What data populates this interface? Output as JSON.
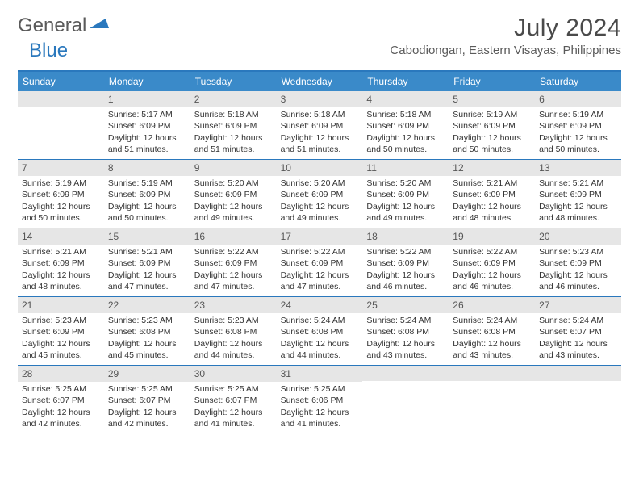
{
  "brand": {
    "part1": "General",
    "part2": "Blue"
  },
  "title": "July 2024",
  "location": "Cabodiongan, Eastern Visayas, Philippines",
  "colors": {
    "header_bar": "#3a8ac9",
    "rule": "#2a78bd",
    "daynum_bg": "#e6e6e6",
    "text": "#333333",
    "title_text": "#4a4a4a",
    "brand_gray": "#5a5a5a",
    "brand_blue": "#2a78bd",
    "background": "#ffffff"
  },
  "typography": {
    "month_title_pt": 30,
    "location_pt": 15,
    "day_header_pt": 12,
    "cell_body_pt": 10.5,
    "daynum_pt": 12
  },
  "day_names": [
    "Sunday",
    "Monday",
    "Tuesday",
    "Wednesday",
    "Thursday",
    "Friday",
    "Saturday"
  ],
  "weeks": [
    [
      {
        "n": "",
        "empty": true
      },
      {
        "n": "1",
        "sunrise": "Sunrise: 5:17 AM",
        "sunset": "Sunset: 6:09 PM",
        "d1": "Daylight: 12 hours",
        "d2": "and 51 minutes."
      },
      {
        "n": "2",
        "sunrise": "Sunrise: 5:18 AM",
        "sunset": "Sunset: 6:09 PM",
        "d1": "Daylight: 12 hours",
        "d2": "and 51 minutes."
      },
      {
        "n": "3",
        "sunrise": "Sunrise: 5:18 AM",
        "sunset": "Sunset: 6:09 PM",
        "d1": "Daylight: 12 hours",
        "d2": "and 51 minutes."
      },
      {
        "n": "4",
        "sunrise": "Sunrise: 5:18 AM",
        "sunset": "Sunset: 6:09 PM",
        "d1": "Daylight: 12 hours",
        "d2": "and 50 minutes."
      },
      {
        "n": "5",
        "sunrise": "Sunrise: 5:19 AM",
        "sunset": "Sunset: 6:09 PM",
        "d1": "Daylight: 12 hours",
        "d2": "and 50 minutes."
      },
      {
        "n": "6",
        "sunrise": "Sunrise: 5:19 AM",
        "sunset": "Sunset: 6:09 PM",
        "d1": "Daylight: 12 hours",
        "d2": "and 50 minutes."
      }
    ],
    [
      {
        "n": "7",
        "sunrise": "Sunrise: 5:19 AM",
        "sunset": "Sunset: 6:09 PM",
        "d1": "Daylight: 12 hours",
        "d2": "and 50 minutes."
      },
      {
        "n": "8",
        "sunrise": "Sunrise: 5:19 AM",
        "sunset": "Sunset: 6:09 PM",
        "d1": "Daylight: 12 hours",
        "d2": "and 50 minutes."
      },
      {
        "n": "9",
        "sunrise": "Sunrise: 5:20 AM",
        "sunset": "Sunset: 6:09 PM",
        "d1": "Daylight: 12 hours",
        "d2": "and 49 minutes."
      },
      {
        "n": "10",
        "sunrise": "Sunrise: 5:20 AM",
        "sunset": "Sunset: 6:09 PM",
        "d1": "Daylight: 12 hours",
        "d2": "and 49 minutes."
      },
      {
        "n": "11",
        "sunrise": "Sunrise: 5:20 AM",
        "sunset": "Sunset: 6:09 PM",
        "d1": "Daylight: 12 hours",
        "d2": "and 49 minutes."
      },
      {
        "n": "12",
        "sunrise": "Sunrise: 5:21 AM",
        "sunset": "Sunset: 6:09 PM",
        "d1": "Daylight: 12 hours",
        "d2": "and 48 minutes."
      },
      {
        "n": "13",
        "sunrise": "Sunrise: 5:21 AM",
        "sunset": "Sunset: 6:09 PM",
        "d1": "Daylight: 12 hours",
        "d2": "and 48 minutes."
      }
    ],
    [
      {
        "n": "14",
        "sunrise": "Sunrise: 5:21 AM",
        "sunset": "Sunset: 6:09 PM",
        "d1": "Daylight: 12 hours",
        "d2": "and 48 minutes."
      },
      {
        "n": "15",
        "sunrise": "Sunrise: 5:21 AM",
        "sunset": "Sunset: 6:09 PM",
        "d1": "Daylight: 12 hours",
        "d2": "and 47 minutes."
      },
      {
        "n": "16",
        "sunrise": "Sunrise: 5:22 AM",
        "sunset": "Sunset: 6:09 PM",
        "d1": "Daylight: 12 hours",
        "d2": "and 47 minutes."
      },
      {
        "n": "17",
        "sunrise": "Sunrise: 5:22 AM",
        "sunset": "Sunset: 6:09 PM",
        "d1": "Daylight: 12 hours",
        "d2": "and 47 minutes."
      },
      {
        "n": "18",
        "sunrise": "Sunrise: 5:22 AM",
        "sunset": "Sunset: 6:09 PM",
        "d1": "Daylight: 12 hours",
        "d2": "and 46 minutes."
      },
      {
        "n": "19",
        "sunrise": "Sunrise: 5:22 AM",
        "sunset": "Sunset: 6:09 PM",
        "d1": "Daylight: 12 hours",
        "d2": "and 46 minutes."
      },
      {
        "n": "20",
        "sunrise": "Sunrise: 5:23 AM",
        "sunset": "Sunset: 6:09 PM",
        "d1": "Daylight: 12 hours",
        "d2": "and 46 minutes."
      }
    ],
    [
      {
        "n": "21",
        "sunrise": "Sunrise: 5:23 AM",
        "sunset": "Sunset: 6:09 PM",
        "d1": "Daylight: 12 hours",
        "d2": "and 45 minutes."
      },
      {
        "n": "22",
        "sunrise": "Sunrise: 5:23 AM",
        "sunset": "Sunset: 6:08 PM",
        "d1": "Daylight: 12 hours",
        "d2": "and 45 minutes."
      },
      {
        "n": "23",
        "sunrise": "Sunrise: 5:23 AM",
        "sunset": "Sunset: 6:08 PM",
        "d1": "Daylight: 12 hours",
        "d2": "and 44 minutes."
      },
      {
        "n": "24",
        "sunrise": "Sunrise: 5:24 AM",
        "sunset": "Sunset: 6:08 PM",
        "d1": "Daylight: 12 hours",
        "d2": "and 44 minutes."
      },
      {
        "n": "25",
        "sunrise": "Sunrise: 5:24 AM",
        "sunset": "Sunset: 6:08 PM",
        "d1": "Daylight: 12 hours",
        "d2": "and 43 minutes."
      },
      {
        "n": "26",
        "sunrise": "Sunrise: 5:24 AM",
        "sunset": "Sunset: 6:08 PM",
        "d1": "Daylight: 12 hours",
        "d2": "and 43 minutes."
      },
      {
        "n": "27",
        "sunrise": "Sunrise: 5:24 AM",
        "sunset": "Sunset: 6:07 PM",
        "d1": "Daylight: 12 hours",
        "d2": "and 43 minutes."
      }
    ],
    [
      {
        "n": "28",
        "sunrise": "Sunrise: 5:25 AM",
        "sunset": "Sunset: 6:07 PM",
        "d1": "Daylight: 12 hours",
        "d2": "and 42 minutes."
      },
      {
        "n": "29",
        "sunrise": "Sunrise: 5:25 AM",
        "sunset": "Sunset: 6:07 PM",
        "d1": "Daylight: 12 hours",
        "d2": "and 42 minutes."
      },
      {
        "n": "30",
        "sunrise": "Sunrise: 5:25 AM",
        "sunset": "Sunset: 6:07 PM",
        "d1": "Daylight: 12 hours",
        "d2": "and 41 minutes."
      },
      {
        "n": "31",
        "sunrise": "Sunrise: 5:25 AM",
        "sunset": "Sunset: 6:06 PM",
        "d1": "Daylight: 12 hours",
        "d2": "and 41 minutes."
      },
      {
        "n": "",
        "empty": true
      },
      {
        "n": "",
        "empty": true
      },
      {
        "n": "",
        "empty": true
      }
    ]
  ]
}
